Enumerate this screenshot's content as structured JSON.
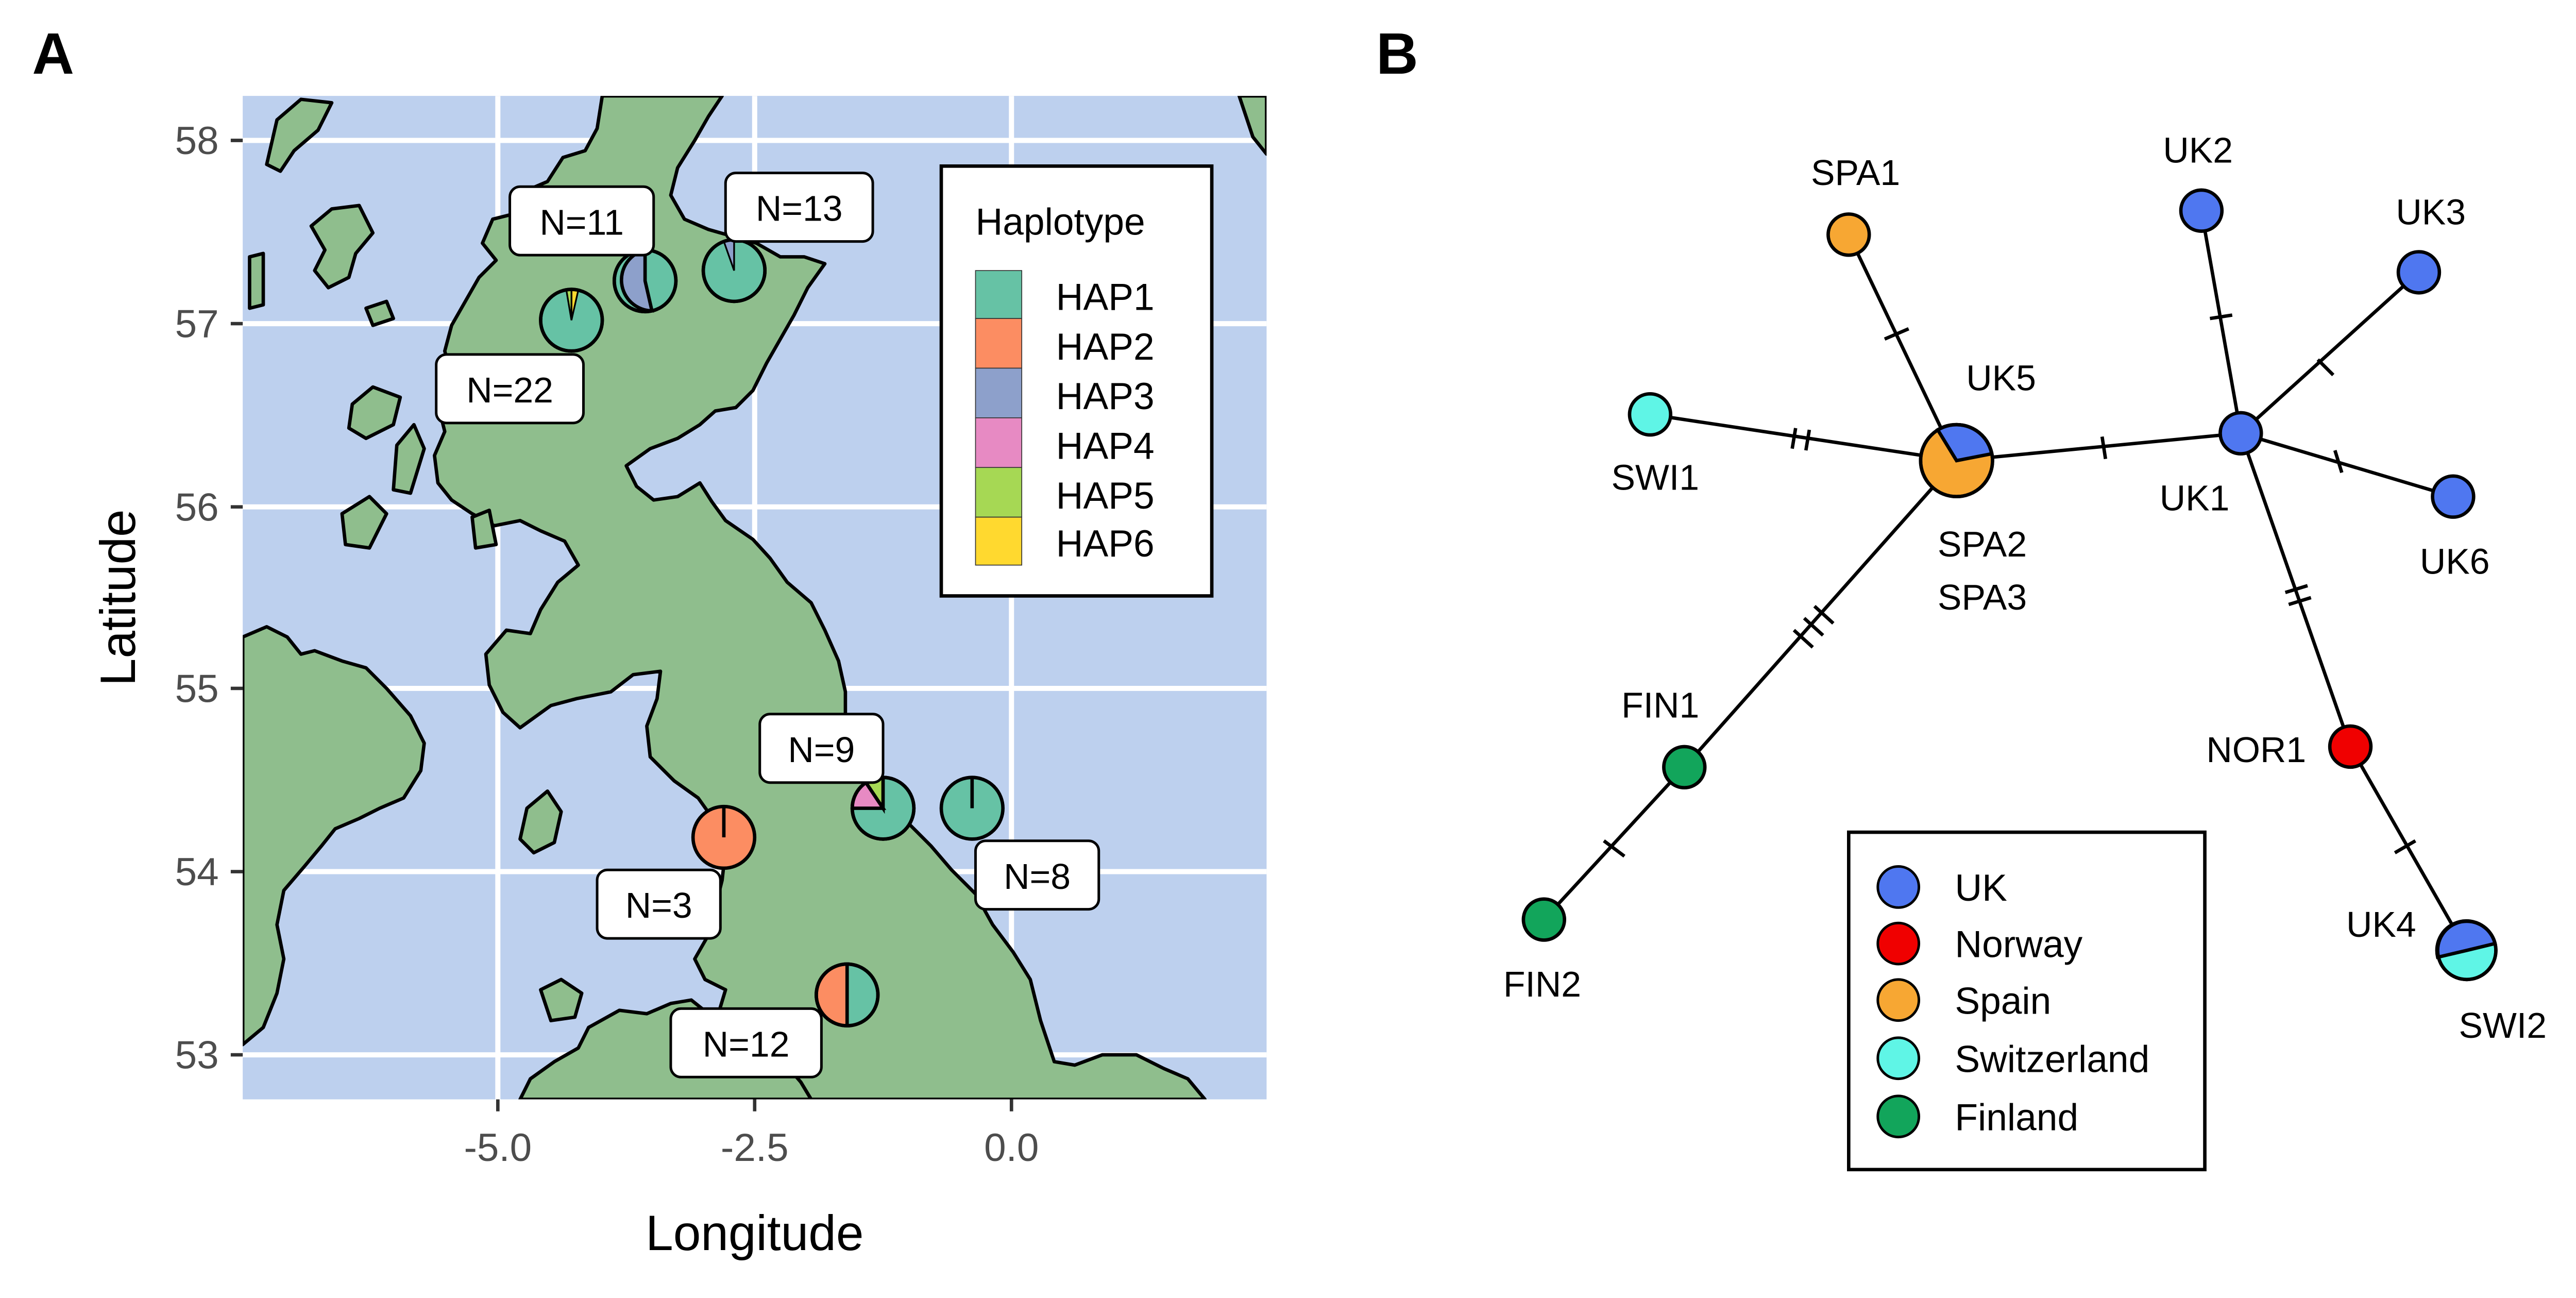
{
  "panel_a": {
    "label": "A",
    "xlabel": "Longitude",
    "ylabel": "Latitude",
    "x_ticks": [
      "-5.0",
      "-2.5",
      "0.0"
    ],
    "y_ticks": [
      "58",
      "57",
      "56",
      "55",
      "54",
      "53"
    ],
    "legend": {
      "title": "Haplotype",
      "items": [
        {
          "label": "HAP1",
          "color": "#66C2A5"
        },
        {
          "label": "HAP2",
          "color": "#FC8D62"
        },
        {
          "label": "HAP3",
          "color": "#8DA0CB"
        },
        {
          "label": "HAP4",
          "color": "#E78AC3"
        },
        {
          "label": "HAP5",
          "color": "#A6D854"
        },
        {
          "label": "HAP6",
          "color": "#FFD92F"
        }
      ]
    },
    "sites": [
      {
        "label": "N=11"
      },
      {
        "label": "N=13"
      },
      {
        "label": "N=22"
      },
      {
        "label": "N=9"
      },
      {
        "label": "N=8"
      },
      {
        "label": "N=3"
      },
      {
        "label": "N=12"
      }
    ],
    "colors": {
      "sea": "#BDD0EE",
      "land": "#8FBE8D"
    }
  },
  "panel_b": {
    "label": "B",
    "legend": {
      "items": [
        {
          "label": "UK",
          "color": "#4F77F0"
        },
        {
          "label": "Norway",
          "color": "#F00000"
        },
        {
          "label": "Spain",
          "color": "#F7A733"
        },
        {
          "label": "Switzerland",
          "color": "#5FF5E6"
        },
        {
          "label": "Finland",
          "color": "#12A55B"
        }
      ]
    },
    "node_labels": [
      {
        "text": "SPA1"
      },
      {
        "text": "UK2"
      },
      {
        "text": "UK3"
      },
      {
        "text": "UK5"
      },
      {
        "text": "SWI1"
      },
      {
        "text": "UK1"
      },
      {
        "text": "UK6"
      },
      {
        "text": "SPA2"
      },
      {
        "text": "SPA3"
      },
      {
        "text": "FIN1"
      },
      {
        "text": "NOR1"
      },
      {
        "text": "FIN2"
      },
      {
        "text": "UK4"
      },
      {
        "text": "SWI2"
      }
    ]
  }
}
